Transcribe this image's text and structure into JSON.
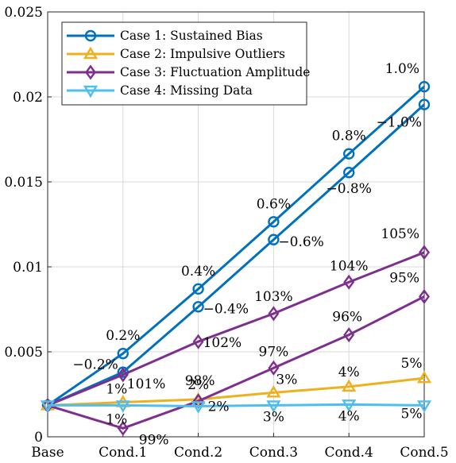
{
  "chart_data": {
    "type": "line",
    "title": "",
    "xlabel": "",
    "ylabel": "",
    "categories": [
      "Base",
      "Cond.1",
      "Cond.2",
      "Cond.3",
      "Cond.4",
      "Cond.5"
    ],
    "ylim": [
      0,
      0.025
    ],
    "yticks": [
      "0",
      "0.005",
      "0.01",
      "0.015",
      "0.02",
      "0.025"
    ],
    "grid": true,
    "legend_position": "top-left",
    "series": [
      {
        "name": "Case 1: Sustained Bias",
        "color": "#0072BD",
        "marker": "circle",
        "lines": [
          {
            "values": [
              0.00185,
              0.0049,
              0.0087,
              0.01265,
              0.01665,
              0.0206
            ],
            "labels": [
              "",
              "0.2%",
              "0.4%",
              "0.6%",
              "0.8%",
              "1.0%"
            ]
          },
          {
            "values": [
              0.00185,
              0.0038,
              0.00765,
              0.0116,
              0.01555,
              0.01955
            ],
            "labels": [
              "",
              "−0.2%",
              "−0.4%",
              "−0.6%",
              "−0.8%",
              "−1.0%"
            ]
          }
        ]
      },
      {
        "name": "Case 2: Impulsive Outliers",
        "color": "#EDB120",
        "marker": "triangle-up",
        "lines": [
          {
            "values": [
              0.00185,
              0.00203,
              0.0022,
              0.0026,
              0.00295,
              0.00345
            ],
            "labels": [
              "",
              "1%",
              "2%",
              "3%",
              "4%",
              "5%"
            ]
          }
        ]
      },
      {
        "name": "Case 3: Fluctuation Amplitude",
        "color": "#7E2F8E",
        "marker": "diamond",
        "lines": [
          {
            "values": [
              0.00185,
              0.00365,
              0.0056,
              0.00725,
              0.0091,
              0.01085
            ],
            "labels": [
              "",
              "101%",
              "102%",
              "103%",
              "104%",
              "105%"
            ]
          },
          {
            "values": [
              0.00185,
              0.0005,
              0.0021,
              0.00405,
              0.006,
              0.00825
            ],
            "labels": [
              "",
              "99%",
              "98%",
              "97%",
              "96%",
              "95%"
            ]
          }
        ]
      },
      {
        "name": "Case 4: Missing Data",
        "color": "#4DBEEE",
        "marker": "triangle-down",
        "lines": [
          {
            "values": [
              0.00185,
              0.00185,
              0.0018,
              0.00185,
              0.0019,
              0.00185
            ],
            "labels": [
              "",
              "1%",
              "2%",
              "3%",
              "4%",
              "5%"
            ]
          }
        ]
      }
    ]
  }
}
